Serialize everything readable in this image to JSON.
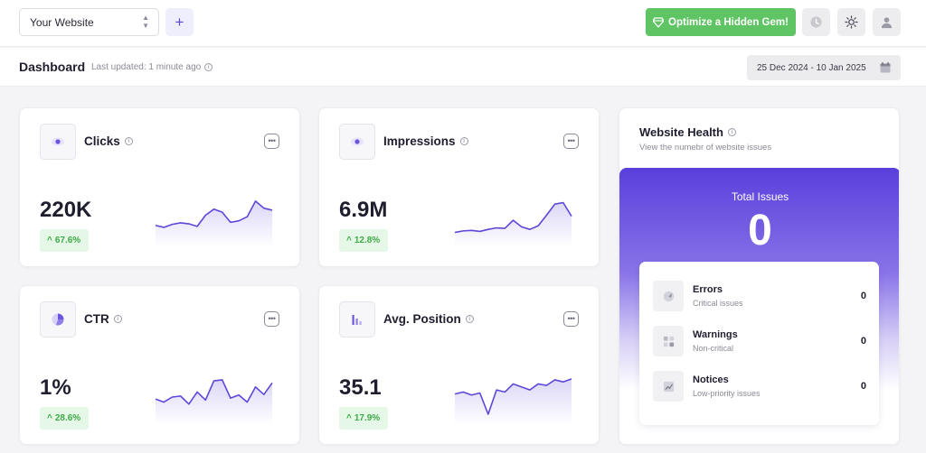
{
  "topbar": {
    "website_select": "Your Website",
    "add_label": "+",
    "optimize_button": "Optimize a Hidden Gem!"
  },
  "subbar": {
    "title": "Dashboard",
    "last_updated": "Last updated: 1 minute ago",
    "date_range": "25 Dec 2024 - 10 Jan 2025"
  },
  "metrics": [
    {
      "title": "Clicks",
      "value": "220K",
      "change": "67.6%",
      "icon": "eye-icon",
      "trend": [
        38,
        34,
        40,
        43,
        41,
        36,
        58,
        70,
        64,
        44,
        47,
        55,
        86,
        72,
        68
      ]
    },
    {
      "title": "Impressions",
      "value": "6.9M",
      "change": "12.8%",
      "icon": "eye-icon",
      "trend": [
        24,
        27,
        28,
        26,
        30,
        33,
        32,
        48,
        35,
        30,
        37,
        58,
        80,
        83,
        56
      ]
    },
    {
      "title": "CTR",
      "value": "1%",
      "change": "28.6%",
      "icon": "pie-chart-icon",
      "trend": [
        46,
        40,
        50,
        52,
        36,
        60,
        44,
        82,
        84,
        48,
        54,
        40,
        70,
        55,
        78
      ]
    },
    {
      "title": "Avg. Position",
      "value": "35.1",
      "change": "17.9%",
      "icon": "bar-chart-icon",
      "trend": [
        56,
        60,
        54,
        58,
        16,
        64,
        60,
        76,
        70,
        64,
        76,
        73,
        84,
        80,
        86
      ]
    }
  ],
  "health": {
    "title": "Website Health",
    "subtitle": "View the numebr of website issues",
    "total_label": "Total Issues",
    "total_value": "0",
    "issues": [
      {
        "name": "Errors",
        "desc": "Critical issues",
        "count": "0",
        "icon": "compass-icon"
      },
      {
        "name": "Warnings",
        "desc": "Non-critical",
        "count": "0",
        "icon": "grid-icon"
      },
      {
        "name": "Notices",
        "desc": "Low-priority issues",
        "count": "0",
        "icon": "chart-icon"
      }
    ]
  },
  "colors": {
    "accent": "#5b48d8",
    "success": "#5fc463",
    "badge_bg": "#e5f7e6",
    "badge_text": "#3faa48"
  }
}
